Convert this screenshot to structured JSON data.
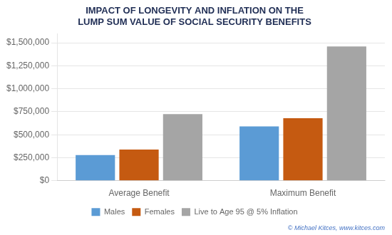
{
  "chart_data": {
    "type": "bar",
    "title": [
      "IMPACT OF LONGEVITY AND INFLATION ON THE",
      "LUMP SUM VALUE OF SOCIAL SECURITY BENEFITS"
    ],
    "annotations": [
      "© Michael Kitces, www.kitces.com"
    ],
    "categories": [
      "Average Benefit",
      "Maximum Benefit"
    ],
    "series": [
      {
        "name": "Males",
        "color": "#5b9bd5",
        "values": [
          280000,
          590000
        ]
      },
      {
        "name": "Females",
        "color": "#c55a11",
        "values": [
          340000,
          680000
        ]
      },
      {
        "name": "Live to Age 95 @ 5% Inflation",
        "color": "#a5a5a5",
        "values": [
          725000,
          1460000
        ]
      }
    ],
    "ylim": [
      0,
      1600000
    ],
    "yticks": [
      {
        "value": 0,
        "label": "$0"
      },
      {
        "value": 250000,
        "label": "$250,000"
      },
      {
        "value": 500000,
        "label": "$500,000"
      },
      {
        "value": 750000,
        "label": "$750,000"
      },
      {
        "value": 1000000,
        "label": "$1,000,000"
      },
      {
        "value": 1250000,
        "label": "$1,250,000"
      },
      {
        "value": 1500000,
        "label": "$1,500,000"
      }
    ],
    "grid": true,
    "legend": "bottom"
  }
}
